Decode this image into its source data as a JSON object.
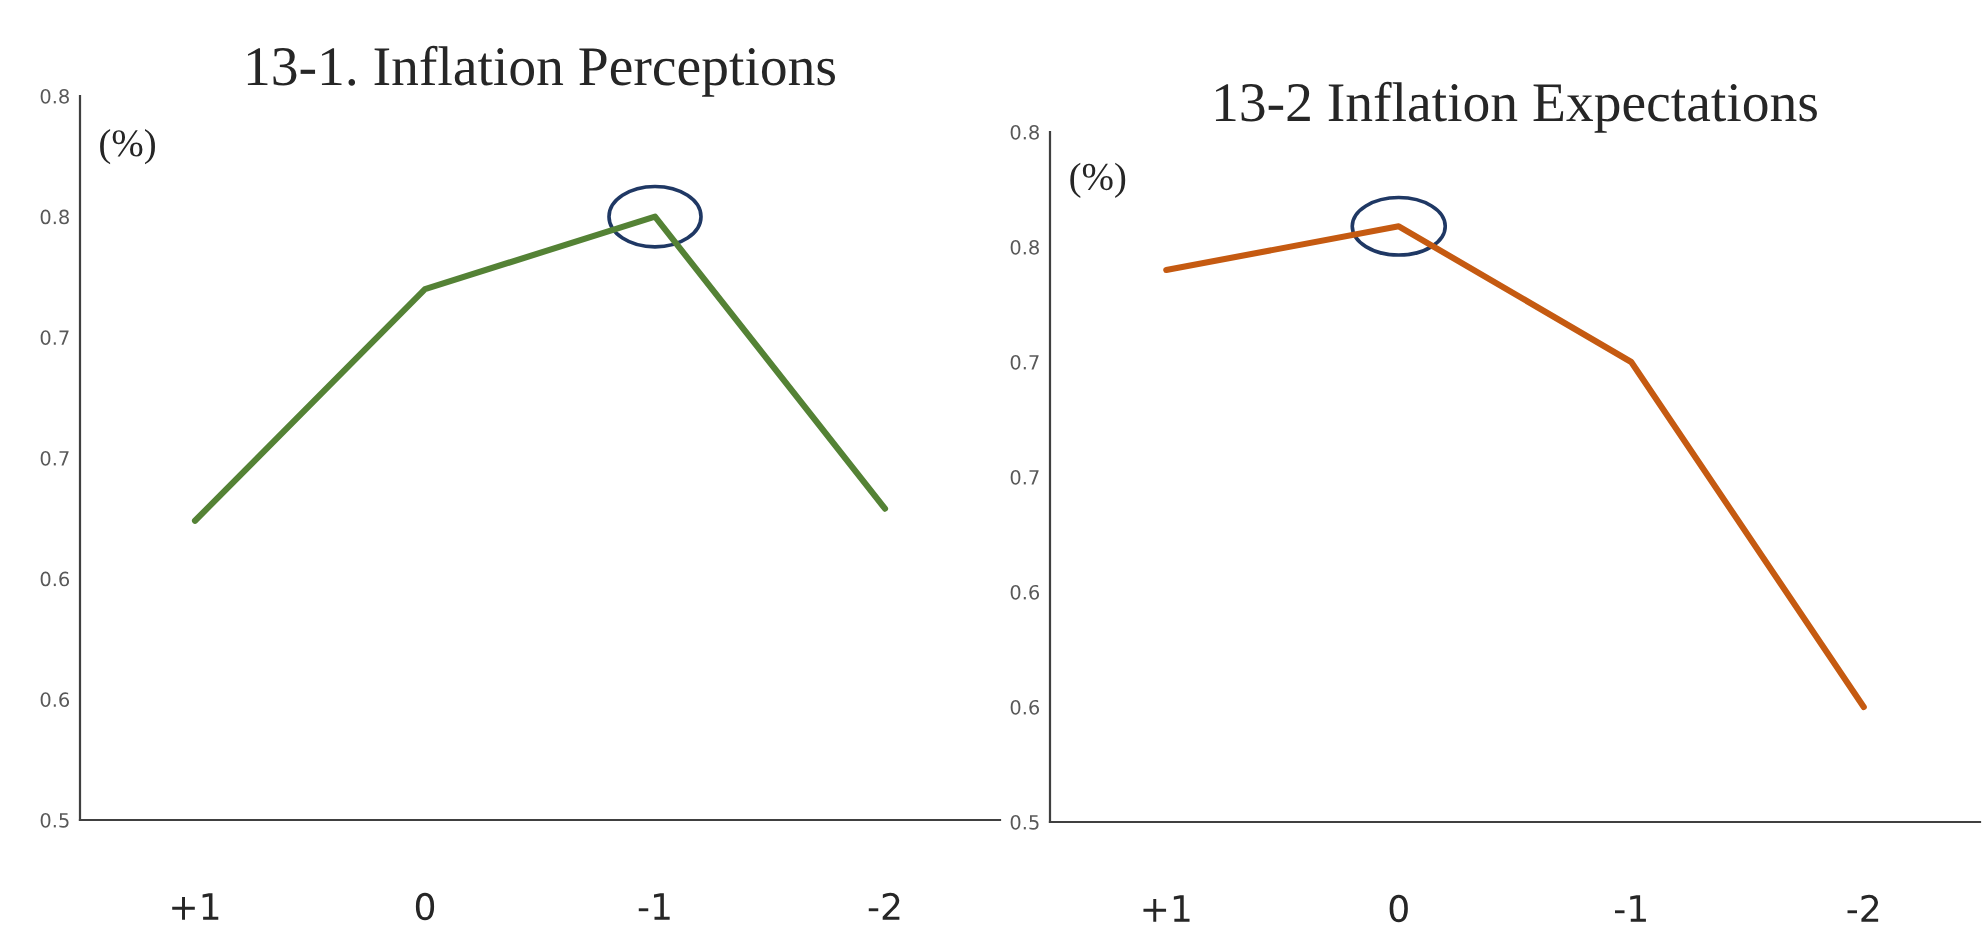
{
  "chart_data": [
    {
      "type": "line",
      "title": "13-1. Inflation Perceptions",
      "ylabel": "(%)",
      "categories": [
        "+1",
        "0",
        "-1",
        "-2"
      ],
      "series": [
        {
          "color": "#548235",
          "values": [
            0.624,
            0.72,
            0.75,
            0.629
          ]
        }
      ],
      "ylim": [
        0.5,
        0.8
      ],
      "yticks": [
        {
          "value": 0.5,
          "label": "0.5"
        },
        {
          "value": 0.55,
          "label": "0.6"
        },
        {
          "value": 0.6,
          "label": "0.6"
        },
        {
          "value": 0.65,
          "label": "0.7"
        },
        {
          "value": 0.7,
          "label": "0.7"
        },
        {
          "value": 0.75,
          "label": "0.8"
        },
        {
          "value": 0.8,
          "label": "0.8"
        }
      ],
      "grid": false,
      "legend": false,
      "marker": "none",
      "line_style": "solid"
    },
    {
      "type": "line",
      "title": "13-2 Inflation Expectations",
      "ylabel": "(%)",
      "categories": [
        "+1",
        "0",
        "-1",
        "-2"
      ],
      "series": [
        {
          "color": "#c55a11",
          "values": [
            0.74,
            0.759,
            0.7,
            0.55
          ]
        }
      ],
      "ylim": [
        0.5,
        0.8
      ],
      "yticks": [
        {
          "value": 0.5,
          "label": "0.5"
        },
        {
          "value": 0.55,
          "label": "0.6"
        },
        {
          "value": 0.6,
          "label": "0.6"
        },
        {
          "value": 0.65,
          "label": "0.7"
        },
        {
          "value": 0.7,
          "label": "0.7"
        },
        {
          "value": 0.75,
          "label": "0.8"
        },
        {
          "value": 0.8,
          "label": "0.8"
        }
      ],
      "grid": false,
      "legend": false,
      "marker": "none",
      "line_style": "solid"
    }
  ]
}
